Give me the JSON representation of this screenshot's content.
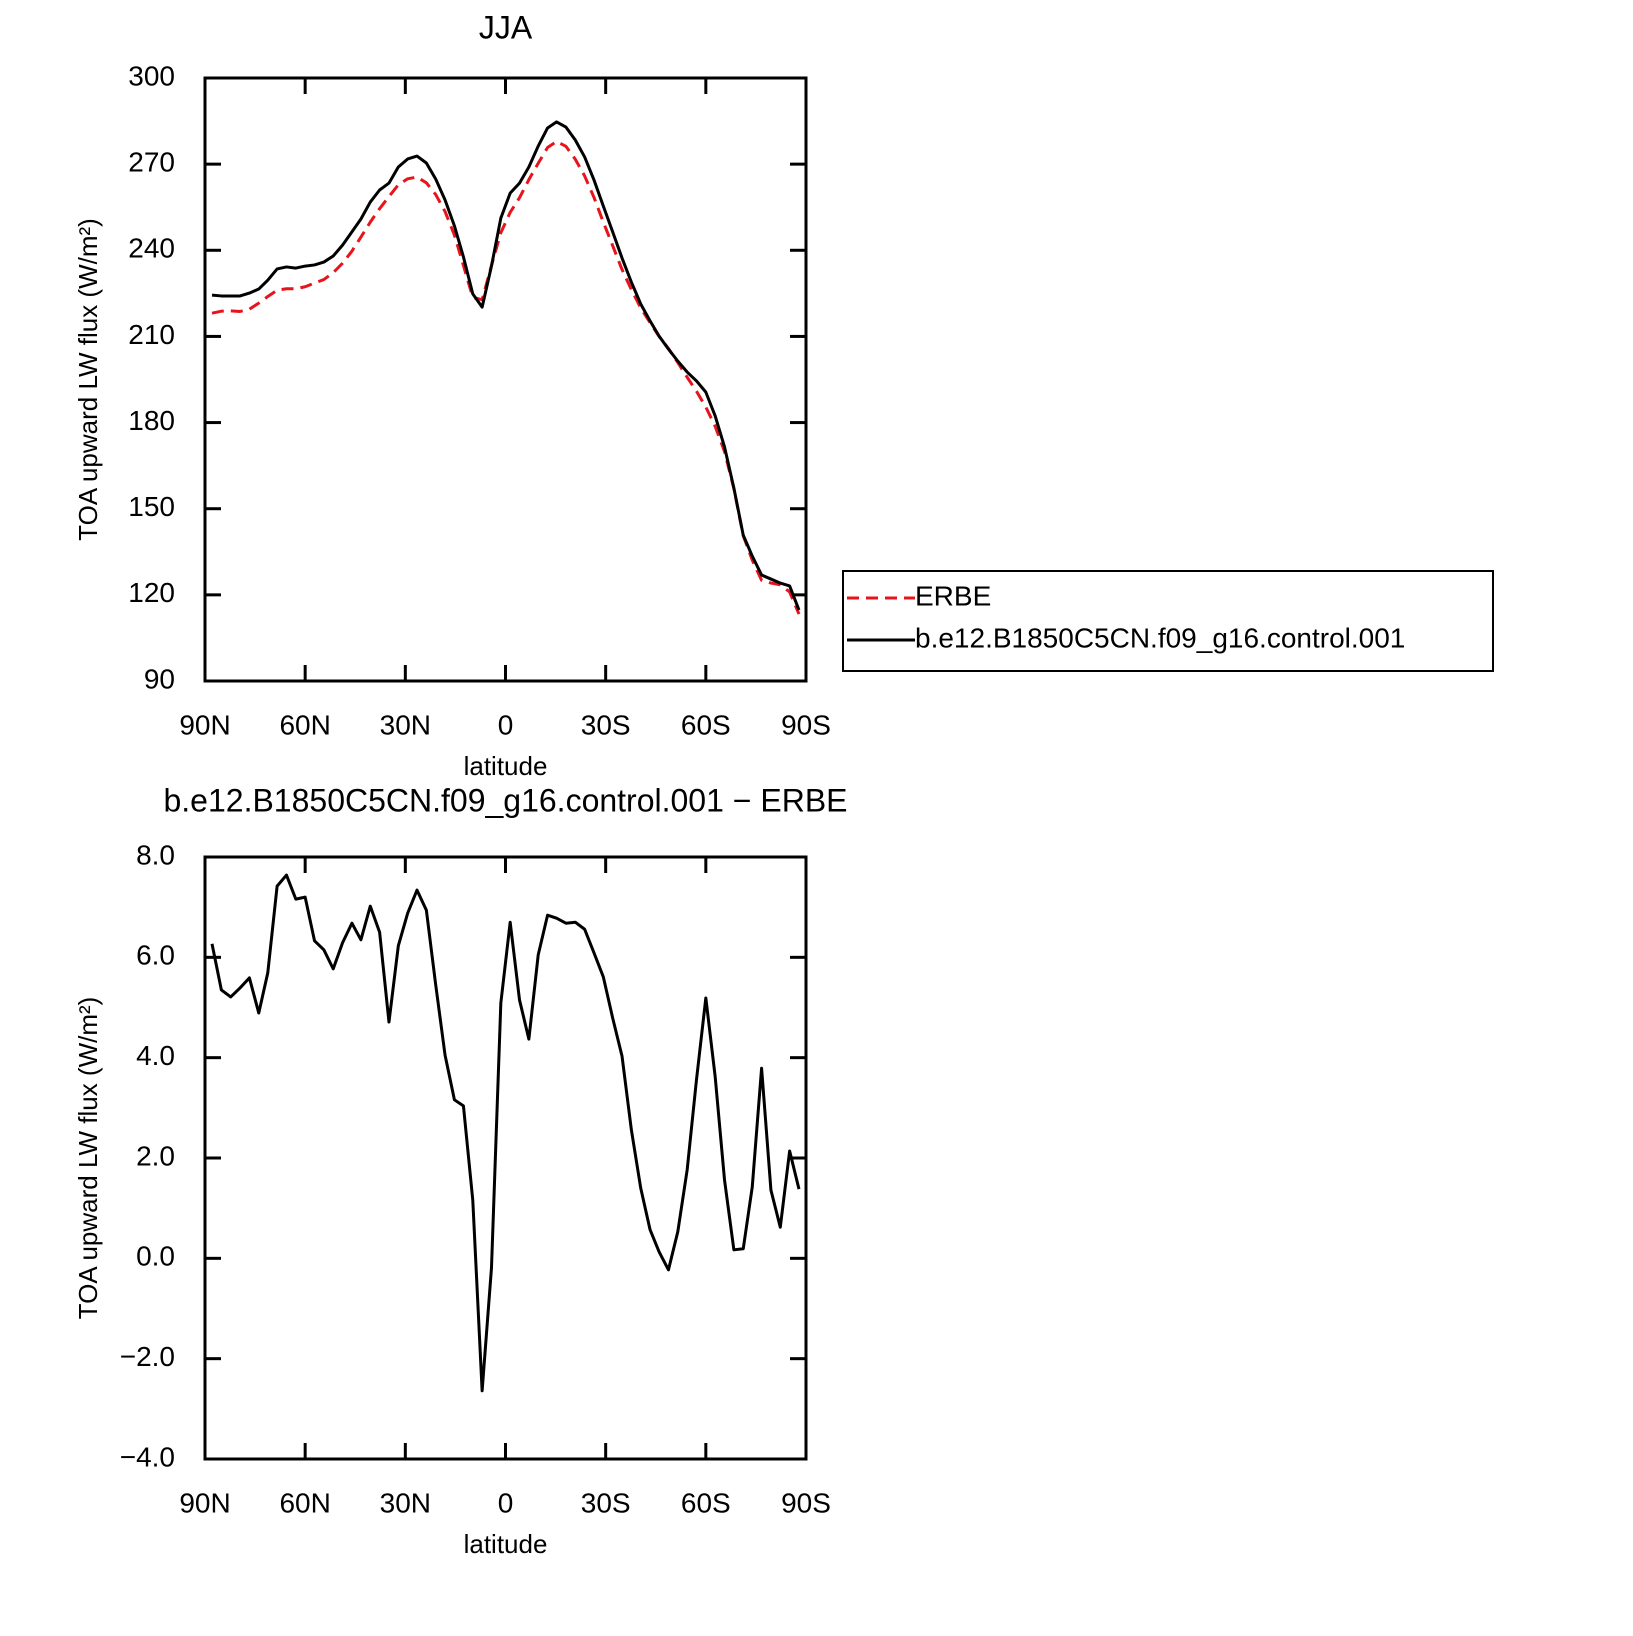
{
  "chart_data": [
    {
      "type": "line",
      "title": "JJA",
      "xlabel": "latitude",
      "ylabel": "TOA upward LW flux (W/m²)",
      "x": [
        87.9,
        85.1,
        82.3,
        79.5,
        76.7,
        73.9,
        71.2,
        68.4,
        65.6,
        62.8,
        60.0,
        57.2,
        54.4,
        51.6,
        48.8,
        46.0,
        43.3,
        40.5,
        37.7,
        34.9,
        32.1,
        29.3,
        26.5,
        23.7,
        20.9,
        18.1,
        15.3,
        12.6,
        9.8,
        7.0,
        4.2,
        1.4,
        -1.4,
        -4.2,
        -7.0,
        -9.8,
        -12.6,
        -15.3,
        -18.1,
        -20.9,
        -23.7,
        -26.5,
        -29.3,
        -32.1,
        -34.9,
        -37.7,
        -40.5,
        -43.3,
        -46.0,
        -48.8,
        -51.6,
        -54.4,
        -57.2,
        -60.0,
        -62.8,
        -65.6,
        -68.4,
        -71.2,
        -73.9,
        -76.7,
        -79.5,
        -82.3,
        -85.1,
        -87.9
      ],
      "series": [
        {
          "name": "ERBE",
          "color": "#e8141c",
          "line_style": "dashed",
          "values": [
            218.1,
            218.8,
            218.9,
            218.7,
            219.5,
            221.6,
            223.9,
            226.1,
            226.6,
            226.6,
            227.3,
            228.6,
            229.8,
            232.2,
            235.5,
            239.7,
            244.6,
            249.8,
            254.5,
            258.7,
            262.8,
            264.9,
            265.5,
            263.5,
            259.4,
            253.5,
            245.3,
            234.7,
            223.6,
            222.8,
            234.7,
            246.1,
            253.2,
            258.3,
            264.6,
            270.3,
            275.8,
            277.9,
            276.2,
            271.7,
            265.9,
            258.4,
            249.8,
            241.6,
            233.3,
            226.3,
            219.9,
            214.8,
            210.0,
            205.8,
            200.9,
            195.8,
            190.9,
            185.4,
            178.7,
            169.9,
            157.0,
            140.6,
            132.1,
            125.1,
            124.1,
            123.5,
            121.0,
            113.3
          ]
        },
        {
          "name": "b.e12.B1850C5CN.f09_g16.control.001",
          "color": "#000000",
          "line_style": "solid",
          "values": [
            224.4,
            224.1,
            224.1,
            224.1,
            225.1,
            226.5,
            229.6,
            233.5,
            234.2,
            233.8,
            234.5,
            234.9,
            235.9,
            238.0,
            241.8,
            246.4,
            250.9,
            256.8,
            261.0,
            263.4,
            269.0,
            271.8,
            272.8,
            270.4,
            264.8,
            257.5,
            248.5,
            237.7,
            224.8,
            220.2,
            234.5,
            251.2,
            259.9,
            263.4,
            269.0,
            276.3,
            282.6,
            284.7,
            282.9,
            278.4,
            272.5,
            264.5,
            255.4,
            246.4,
            237.3,
            228.9,
            221.3,
            215.4,
            210.1,
            205.6,
            201.4,
            197.6,
            194.5,
            190.6,
            182.3,
            171.5,
            157.2,
            140.8,
            133.5,
            126.9,
            125.5,
            124.1,
            123.1,
            114.7
          ]
        }
      ],
      "xlim": [
        90,
        -90
      ],
      "xticks": [
        {
          "value": 90,
          "label": "90N"
        },
        {
          "value": 60,
          "label": "60N"
        },
        {
          "value": 30,
          "label": "30N"
        },
        0,
        {
          "value": -30,
          "label": "30S"
        },
        {
          "value": -60,
          "label": "60S"
        },
        {
          "value": -90,
          "label": "90S"
        }
      ],
      "ylim": [
        90,
        300
      ],
      "yticks": [
        90,
        120,
        150,
        180,
        210,
        240,
        270,
        300
      ],
      "legend": "right"
    },
    {
      "type": "line",
      "title": "b.e12.B1850C5CN.f09_g16.control.001 − ERBE",
      "xlabel": "latitude",
      "ylabel": "TOA upward LW flux (W/m²)",
      "x": [
        87.9,
        85.1,
        82.3,
        79.5,
        76.7,
        73.9,
        71.2,
        68.4,
        65.6,
        62.8,
        60.0,
        57.2,
        54.4,
        51.6,
        48.8,
        46.0,
        43.3,
        40.5,
        37.7,
        34.9,
        32.1,
        29.3,
        26.5,
        23.7,
        20.9,
        18.1,
        15.3,
        12.6,
        9.8,
        7.0,
        4.2,
        1.4,
        -1.4,
        -4.2,
        -7.0,
        -9.8,
        -12.6,
        -15.3,
        -18.1,
        -20.9,
        -23.7,
        -26.5,
        -29.3,
        -32.1,
        -34.9,
        -37.7,
        -40.5,
        -43.3,
        -46.0,
        -48.8,
        -51.6,
        -54.4,
        -57.2,
        -60.0,
        -62.8,
        -65.6,
        -68.4,
        -71.2,
        -73.9,
        -76.7,
        -79.5,
        -82.3,
        -85.1,
        -87.9
      ],
      "color": "#000000",
      "values": [
        6.27,
        5.35,
        5.21,
        5.39,
        5.59,
        4.89,
        5.69,
        7.42,
        7.64,
        7.16,
        7.2,
        6.33,
        6.15,
        5.77,
        6.29,
        6.68,
        6.35,
        7.02,
        6.5,
        4.71,
        6.23,
        6.88,
        7.34,
        6.94,
        5.45,
        4.05,
        3.16,
        3.04,
        1.16,
        -2.64,
        -0.19,
        5.09,
        6.7,
        5.15,
        4.37,
        6.05,
        6.84,
        6.78,
        6.68,
        6.7,
        6.56,
        6.09,
        5.61,
        4.79,
        4.03,
        2.56,
        1.4,
        0.57,
        0.13,
        -0.23,
        0.53,
        1.76,
        3.56,
        5.19,
        3.62,
        1.56,
        0.17,
        0.19,
        1.42,
        3.79,
        1.36,
        0.62,
        2.14,
        1.38
      ],
      "xlim": [
        90,
        -90
      ],
      "xticks": [
        {
          "value": 90,
          "label": "90N"
        },
        {
          "value": 60,
          "label": "60N"
        },
        {
          "value": 30,
          "label": "30N"
        },
        0,
        {
          "value": -30,
          "label": "30S"
        },
        {
          "value": -60,
          "label": "60S"
        },
        {
          "value": -90,
          "label": "90S"
        }
      ],
      "ylim": [
        -4,
        8
      ],
      "yticks": [
        {
          "value": -4,
          "label": "−4.0"
        },
        {
          "value": -2,
          "label": "−2.0"
        },
        {
          "value": 0,
          "label": "0.0"
        },
        {
          "value": 2,
          "label": "2.0"
        },
        {
          "value": 4,
          "label": "4.0"
        },
        {
          "value": 6,
          "label": "6.0"
        },
        {
          "value": 8,
          "label": "8.0"
        }
      ]
    }
  ]
}
